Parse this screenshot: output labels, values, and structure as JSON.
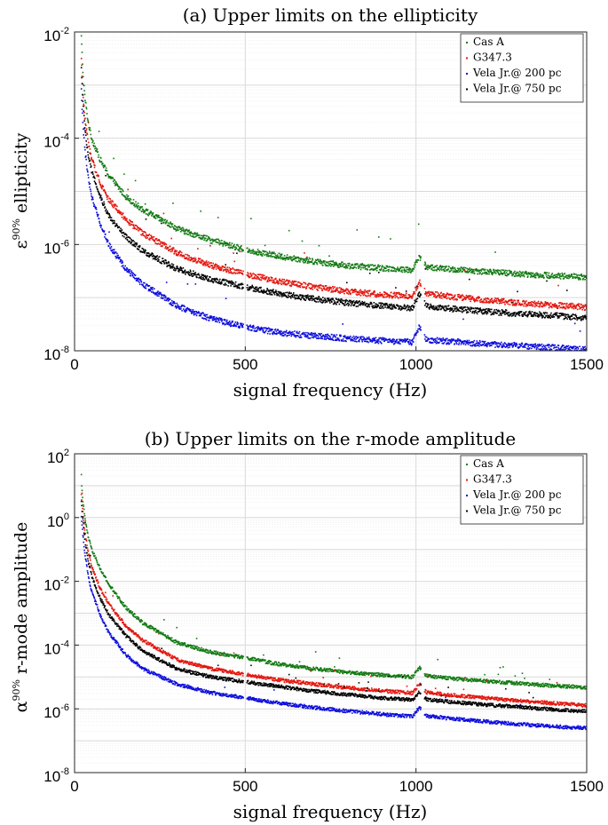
{
  "chart_data": [
    {
      "type": "scatter",
      "title": "(a) Upper limits on the ellipticity",
      "xlabel": "signal frequency (Hz)",
      "ylabel_symbol": "ε",
      "ylabel_sup": "90%",
      "ylabel_text": " ellipticity",
      "xlim": [
        0,
        1500
      ],
      "ylim": [
        1e-08,
        0.01
      ],
      "yscale": "log",
      "grid": true,
      "legend_position": "top-right",
      "x_ticks": [
        0,
        500,
        1000,
        1500
      ],
      "x_tick_labels": [
        "0",
        "500",
        "1000",
        "1500"
      ],
      "y_tick_exponents": [
        -8,
        -6,
        -4,
        -2
      ],
      "y_tick_bases": [
        "10",
        "10",
        "10",
        "10"
      ],
      "y_tick_exp_labels": [
        "-8",
        "-6",
        "-4",
        "-2"
      ],
      "series": [
        {
          "name": "Cas A",
          "color": "#137a13",
          "x": [
            20,
            25,
            30,
            40,
            50,
            75,
            100,
            150,
            200,
            300,
            400,
            500,
            600,
            700,
            800,
            900,
            990,
            1010,
            1030,
            1100,
            1200,
            1300,
            1400,
            1470,
            1500
          ],
          "y": [
            0.008,
            0.0015,
            0.0006,
            0.0002,
            0.0001,
            4e-05,
            2e-05,
            8e-06,
            4.5e-06,
            2e-06,
            1.2e-06,
            8e-07,
            6e-07,
            4.8e-07,
            4e-07,
            3.6e-07,
            3.3e-07,
            6e-07,
            3.8e-07,
            3.4e-07,
            3.1e-07,
            2.8e-07,
            2.6e-07,
            2.5e-07,
            2.4e-07
          ]
        },
        {
          "name": "G347.3",
          "color": "#e3160e",
          "x": [
            20,
            25,
            30,
            40,
            50,
            75,
            100,
            150,
            200,
            300,
            400,
            500,
            600,
            700,
            800,
            900,
            990,
            1010,
            1030,
            1100,
            1200,
            1300,
            1400,
            1470,
            1500
          ],
          "y": [
            0.003,
            0.0006,
            0.00025,
            8e-05,
            4e-05,
            1.5e-05,
            7e-06,
            3e-06,
            1.6e-06,
            7e-07,
            4e-07,
            2.8e-07,
            2e-07,
            1.6e-07,
            1.3e-07,
            1.15e-07,
            1.05e-07,
            2e-07,
            1.2e-07,
            1.05e-07,
            9e-08,
            8e-08,
            7.2e-08,
            6.8e-08,
            6.5e-08
          ]
        },
        {
          "name": "Vela Jr.@ 200 pc",
          "color": "#0c0cdc",
          "x": [
            20,
            25,
            30,
            40,
            50,
            75,
            100,
            150,
            200,
            300,
            400,
            500,
            600,
            700,
            800,
            900,
            990,
            1010,
            1030,
            1100,
            1200,
            1300,
            1400,
            1470,
            1500
          ],
          "y": [
            0.0008,
            0.00015,
            6e-05,
            2e-05,
            8e-06,
            2.5e-06,
            1e-06,
            3.5e-07,
            1.8e-07,
            7e-08,
            4e-08,
            2.8e-08,
            2.2e-08,
            1.9e-08,
            1.7e-08,
            1.55e-08,
            1.45e-08,
            3e-08,
            1.6e-08,
            1.5e-08,
            1.35e-08,
            1.25e-08,
            1.15e-08,
            1.1e-08,
            1.05e-08
          ]
        },
        {
          "name": "Vela Jr.@ 750 pc",
          "color": "#000000",
          "x": [
            20,
            25,
            30,
            40,
            50,
            75,
            100,
            150,
            200,
            300,
            400,
            500,
            600,
            700,
            800,
            900,
            990,
            1010,
            1030,
            1100,
            1200,
            1300,
            1400,
            1470,
            1500
          ],
          "y": [
            0.002,
            0.0004,
            0.00015,
            5e-05,
            2.5e-05,
            8e-06,
            3.5e-06,
            1.4e-06,
            7.5e-07,
            3.5e-07,
            2.2e-07,
            1.6e-07,
            1.2e-07,
            9.5e-08,
            8e-08,
            7e-08,
            6.3e-08,
            1.2e-07,
            7e-08,
            6.2e-08,
            5.5e-08,
            5e-08,
            4.6e-08,
            4.3e-08,
            4.1e-08
          ]
        }
      ]
    },
    {
      "type": "scatter",
      "title": "(b) Upper limits on the r-mode amplitude",
      "xlabel": "signal frequency (Hz)",
      "ylabel_symbol": "α",
      "ylabel_sup": "90%",
      "ylabel_text": " r-mode amplitude",
      "xlim": [
        0,
        1500
      ],
      "ylim": [
        1e-08,
        100.0
      ],
      "yscale": "log",
      "grid": true,
      "legend_position": "top-right",
      "x_ticks": [
        0,
        500,
        1000,
        1500
      ],
      "x_tick_labels": [
        "0",
        "500",
        "1000",
        "1500"
      ],
      "y_tick_exponents": [
        -8,
        -6,
        -4,
        -2,
        0,
        2
      ],
      "y_tick_bases": [
        "10",
        "10",
        "10",
        "10",
        "10",
        "10"
      ],
      "y_tick_exp_labels": [
        "-8",
        "-6",
        "-4",
        "-2",
        "0",
        "2"
      ],
      "series": [
        {
          "name": "Cas A",
          "color": "#137a13",
          "x": [
            20,
            25,
            30,
            40,
            50,
            75,
            100,
            150,
            200,
            300,
            400,
            500,
            600,
            700,
            800,
            900,
            990,
            1010,
            1030,
            1100,
            1200,
            1300,
            1400,
            1470,
            1500
          ],
          "y": [
            12,
            3,
            1,
            0.25,
            0.1,
            0.025,
            0.008,
            0.0015,
            0.0005,
            0.00012,
            6e-05,
            4e-05,
            2.5e-05,
            1.8e-05,
            1.4e-05,
            1.15e-05,
            1e-05,
            2e-05,
            1.1e-05,
            9e-06,
            7.5e-06,
            6.3e-06,
            5.3e-06,
            4.9e-06,
            4.6e-06
          ]
        },
        {
          "name": "G347.3",
          "color": "#e3160e",
          "x": [
            20,
            25,
            30,
            40,
            50,
            75,
            100,
            150,
            200,
            300,
            400,
            500,
            600,
            700,
            800,
            900,
            990,
            1010,
            1030,
            1100,
            1200,
            1300,
            1400,
            1470,
            1500
          ],
          "y": [
            5,
            1.2,
            0.4,
            0.08,
            0.03,
            0.006,
            0.002,
            0.0004,
            0.00014,
            3.5e-05,
            1.8e-05,
            1.2e-05,
            8e-06,
            6e-06,
            4.6e-06,
            3.7e-06,
            3.1e-06,
            6e-06,
            3.3e-06,
            2.7e-06,
            2.2e-06,
            1.8e-06,
            1.5e-06,
            1.35e-06,
            1.25e-06
          ]
        },
        {
          "name": "Vela Jr.@ 200 pc",
          "color": "#0c0cdc",
          "x": [
            20,
            25,
            30,
            40,
            50,
            75,
            100,
            150,
            200,
            300,
            400,
            500,
            600,
            700,
            800,
            900,
            990,
            1010,
            1030,
            1100,
            1200,
            1300,
            1400,
            1470,
            1500
          ],
          "y": [
            1,
            0.25,
            0.08,
            0.015,
            0.005,
            0.0009,
            0.00025,
            5e-05,
            1.8e-05,
            6e-06,
            3.2e-06,
            2.2e-06,
            1.5e-06,
            1.1e-06,
            8.5e-07,
            6.8e-07,
            5.8e-07,
            1.1e-06,
            6e-07,
            5e-07,
            4e-07,
            3.3e-07,
            2.8e-07,
            2.6e-07,
            2.5e-07
          ]
        },
        {
          "name": "Vela Jr.@ 750 pc",
          "color": "#000000",
          "x": [
            20,
            25,
            30,
            40,
            50,
            75,
            100,
            150,
            200,
            300,
            400,
            500,
            600,
            700,
            800,
            900,
            990,
            1010,
            1030,
            1100,
            1200,
            1300,
            1400,
            1470,
            1500
          ],
          "y": [
            3,
            0.7,
            0.2,
            0.04,
            0.015,
            0.003,
            0.0009,
            0.0002,
            6.5e-05,
            1.8e-05,
            1e-05,
            7e-06,
            5e-06,
            3.6e-06,
            2.8e-06,
            2.2e-06,
            1.9e-06,
            3.5e-06,
            2e-06,
            1.65e-06,
            1.35e-06,
            1.15e-06,
            9.5e-07,
            8.7e-07,
            8.2e-07
          ]
        }
      ]
    }
  ]
}
